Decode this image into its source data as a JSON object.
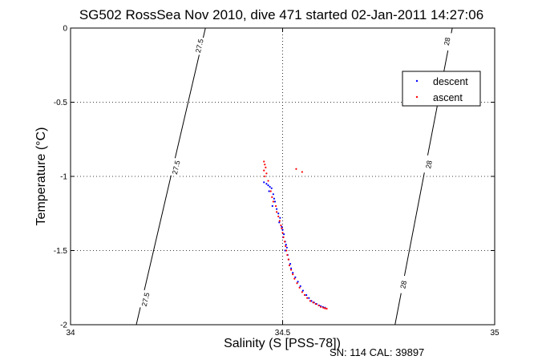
{
  "chart_data": {
    "type": "scatter",
    "title": "SG502 RossSea Nov 2010, dive 471 started 02-Jan-2011 14:27:06",
    "xlabel": "Salinity (S [PSS-78])",
    "ylabel": "Temperature (°C)",
    "xlim": [
      34,
      35
    ],
    "ylim": [
      -2,
      0
    ],
    "xticks": [
      "34",
      "34.5",
      "35"
    ],
    "yticks": [
      "-2",
      "-1.5",
      "-1",
      "-0.5",
      "0"
    ],
    "grid": true,
    "legend_position": "top-right",
    "footer": "SN: 114  CAL: 39897",
    "isopycnals": [
      {
        "label": "27.5",
        "points": [
          [
            34.155,
            -2.0
          ],
          [
            34.318,
            0.0
          ]
        ],
        "label_positions": [
          [
            34.304,
            -0.12
          ],
          [
            34.249,
            -0.94
          ],
          [
            34.177,
            -1.83
          ]
        ]
      },
      {
        "label": "28",
        "points": [
          [
            34.765,
            -2.0
          ],
          [
            34.9,
            0.0
          ]
        ],
        "label_positions": [
          [
            34.888,
            -0.09
          ],
          [
            34.845,
            -0.92
          ],
          [
            34.785,
            -1.73
          ]
        ]
      }
    ],
    "series": [
      {
        "name": "descent",
        "color": "#0000ff",
        "points": [
          [
            34.456,
            -1.04
          ],
          [
            34.462,
            -1.05
          ],
          [
            34.466,
            -1.06
          ],
          [
            34.47,
            -1.07
          ],
          [
            34.474,
            -1.08
          ],
          [
            34.468,
            -1.1
          ],
          [
            34.478,
            -1.12
          ],
          [
            34.48,
            -1.15
          ],
          [
            34.482,
            -1.17
          ],
          [
            34.476,
            -1.2
          ],
          [
            34.486,
            -1.22
          ],
          [
            34.49,
            -1.25
          ],
          [
            34.494,
            -1.28
          ],
          [
            34.492,
            -1.31
          ],
          [
            34.498,
            -1.34
          ],
          [
            34.5,
            -1.36
          ],
          [
            34.503,
            -1.39
          ],
          [
            34.501,
            -1.41
          ],
          [
            34.506,
            -1.44
          ],
          [
            34.508,
            -1.46
          ],
          [
            34.51,
            -1.48
          ],
          [
            34.506,
            -1.5
          ],
          [
            34.512,
            -1.53
          ],
          [
            34.514,
            -1.56
          ],
          [
            34.518,
            -1.59
          ],
          [
            34.52,
            -1.62
          ],
          [
            34.524,
            -1.65
          ],
          [
            34.53,
            -1.68
          ],
          [
            34.536,
            -1.71
          ],
          [
            34.542,
            -1.74
          ],
          [
            34.548,
            -1.77
          ],
          [
            34.556,
            -1.8
          ],
          [
            34.562,
            -1.82
          ],
          [
            34.568,
            -1.84
          ],
          [
            34.574,
            -1.85
          ],
          [
            34.58,
            -1.86
          ],
          [
            34.586,
            -1.87
          ],
          [
            34.59,
            -1.875
          ],
          [
            34.595,
            -1.88
          ],
          [
            34.6,
            -1.885
          ]
        ]
      },
      {
        "name": "ascent",
        "color": "#ff0000",
        "points": [
          [
            34.456,
            -0.9
          ],
          [
            34.458,
            -0.92
          ],
          [
            34.46,
            -0.94
          ],
          [
            34.456,
            -0.96
          ],
          [
            34.462,
            -0.98
          ],
          [
            34.458,
            -1.0
          ],
          [
            34.466,
            -1.03
          ],
          [
            34.472,
            -1.1
          ],
          [
            34.475,
            -1.14
          ],
          [
            34.478,
            -1.17
          ],
          [
            34.484,
            -1.2
          ],
          [
            34.486,
            -1.24
          ],
          [
            34.49,
            -1.27
          ],
          [
            34.493,
            -1.3
          ],
          [
            34.496,
            -1.33
          ],
          [
            34.498,
            -1.35
          ],
          [
            34.5,
            -1.38
          ],
          [
            34.502,
            -1.41
          ],
          [
            34.505,
            -1.44
          ],
          [
            34.507,
            -1.47
          ],
          [
            34.509,
            -1.5
          ],
          [
            34.511,
            -1.53
          ],
          [
            34.514,
            -1.56
          ],
          [
            34.516,
            -1.6
          ],
          [
            34.52,
            -1.63
          ],
          [
            34.524,
            -1.66
          ],
          [
            34.528,
            -1.69
          ],
          [
            34.534,
            -1.72
          ],
          [
            34.54,
            -1.75
          ],
          [
            34.546,
            -1.78
          ],
          [
            34.552,
            -1.8
          ],
          [
            34.558,
            -1.82
          ],
          [
            34.565,
            -1.84
          ],
          [
            34.572,
            -1.85
          ],
          [
            34.578,
            -1.86
          ],
          [
            34.585,
            -1.87
          ],
          [
            34.59,
            -1.88
          ],
          [
            34.596,
            -1.885
          ],
          [
            34.6,
            -1.89
          ],
          [
            34.604,
            -1.892
          ],
          [
            34.532,
            -0.95
          ],
          [
            34.546,
            -0.97
          ]
        ]
      }
    ]
  }
}
